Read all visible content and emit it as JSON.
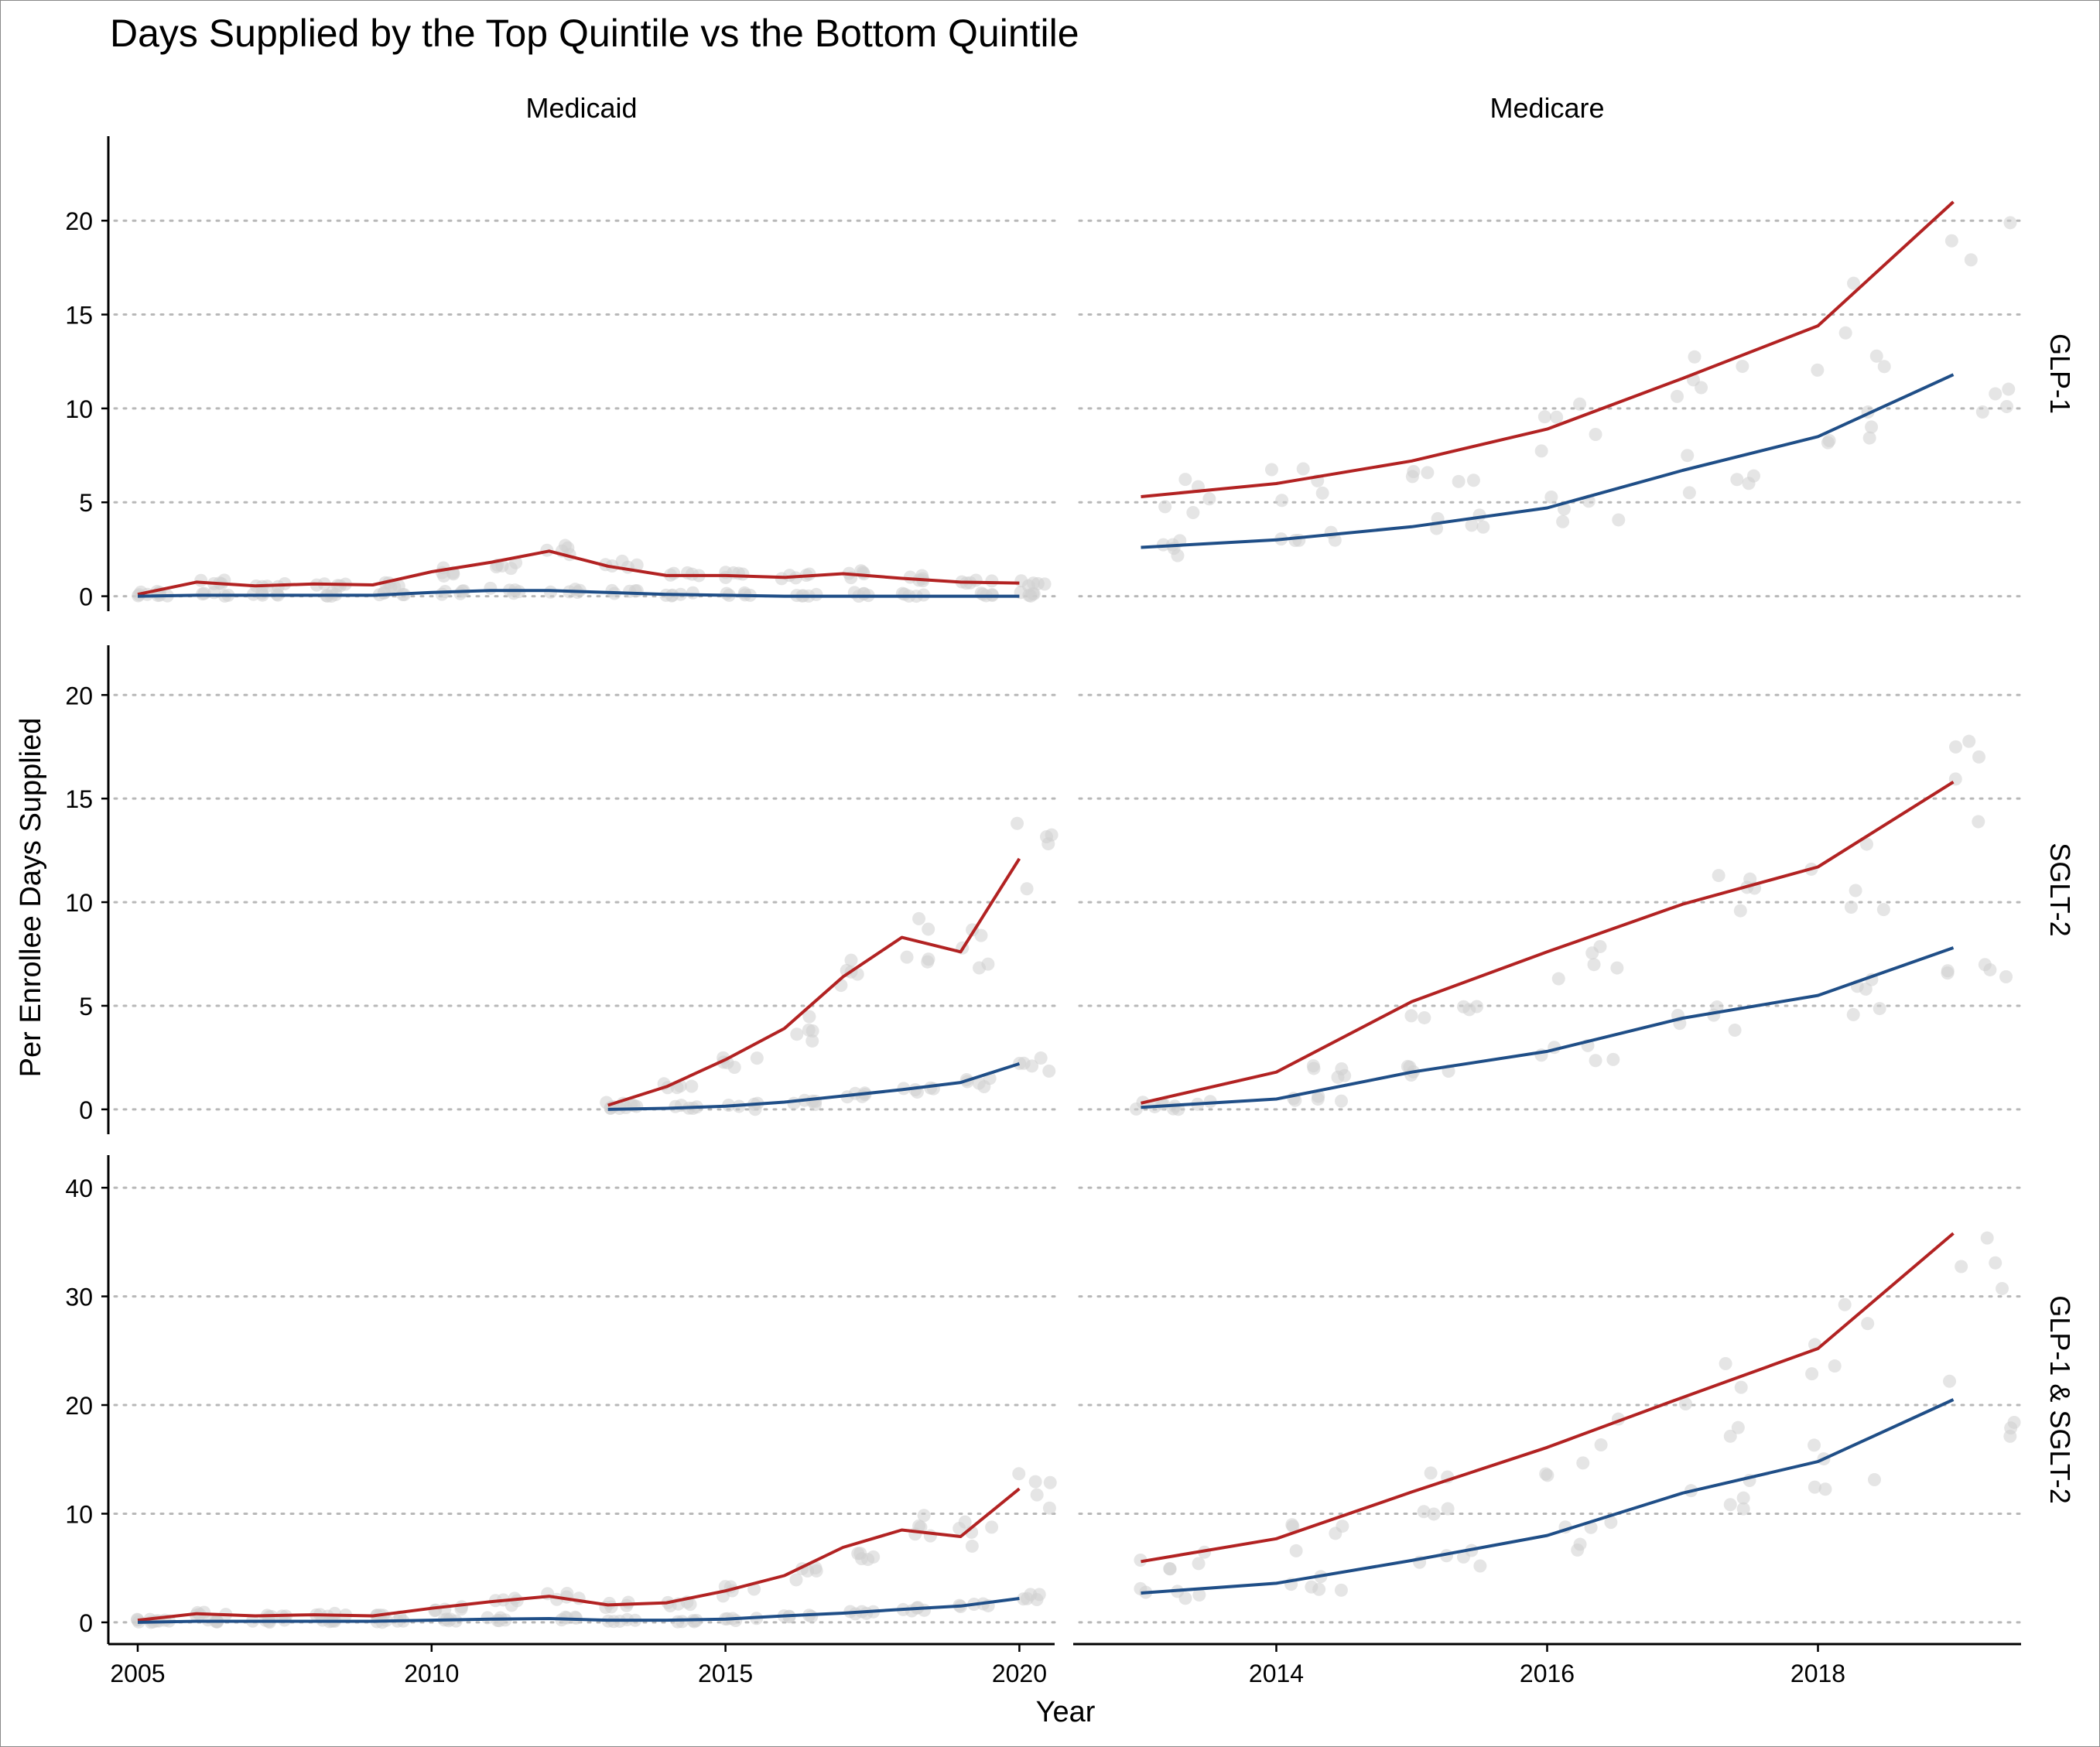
{
  "chart_data": {
    "type": "line",
    "title": "Days Supplied by the Top Quintile vs the Bottom Quintile",
    "xlabel": "Year",
    "ylabel": "Per Enrollee Days Supplied",
    "columns": [
      "Medicaid",
      "Medicare"
    ],
    "rows": [
      "GLP-1",
      "SGLT-2",
      "GLP-1 & SGLT-2"
    ],
    "x_ranges": {
      "Medicaid": [
        2004.5,
        2020.6
      ],
      "Medicare": [
        2012.5,
        2019.5
      ]
    },
    "x_ticks": {
      "Medicaid": [
        2005,
        2010,
        2015,
        2020
      ],
      "Medicare": [
        2014,
        2016,
        2018
      ]
    },
    "y_ranges": {
      "GLP-1": [
        -0.8,
        24.5
      ],
      "SGLT-2": [
        -1.2,
        22.4
      ],
      "GLP-1 & SGLT-2": [
        -2,
        43
      ]
    },
    "y_ticks": {
      "GLP-1": [
        0,
        5,
        10,
        15,
        20
      ],
      "SGLT-2": [
        0,
        5,
        10,
        15,
        20
      ],
      "GLP-1 & SGLT-2": [
        0,
        10,
        20,
        30,
        40
      ]
    },
    "grid": "horizontal-dotted",
    "colors": {
      "top": "#b22222",
      "bottom": "#1f4e87",
      "points": "#cfcfcf"
    },
    "panels": [
      {
        "column": "Medicaid",
        "row": "GLP-1",
        "x": [
          2005,
          2006,
          2007,
          2008,
          2009,
          2010,
          2011,
          2012,
          2013,
          2014,
          2015,
          2016,
          2017,
          2018,
          2019,
          2020
        ],
        "series": [
          {
            "quintile": "top",
            "values": [
              0.1,
              0.75,
              0.55,
              0.65,
              0.6,
              1.3,
              1.8,
              2.4,
              1.6,
              1.1,
              1.1,
              1.0,
              1.2,
              0.95,
              0.75,
              0.7
            ]
          },
          {
            "quintile": "bottom",
            "values": [
              0,
              0.05,
              0.05,
              0.05,
              0.05,
              0.2,
              0.3,
              0.3,
              0.2,
              0.1,
              0.05,
              0,
              0,
              0,
              0,
              0
            ]
          }
        ]
      },
      {
        "column": "Medicare",
        "row": "GLP-1",
        "x": [
          2013,
          2014,
          2015,
          2016,
          2017,
          2018,
          2019
        ],
        "series": [
          {
            "quintile": "top",
            "values": [
              5.3,
              6.0,
              7.2,
              8.9,
              11.6,
              14.4,
              21.0
            ]
          },
          {
            "quintile": "bottom",
            "values": [
              2.6,
              3.0,
              3.7,
              4.7,
              6.7,
              8.5,
              11.8
            ]
          }
        ]
      },
      {
        "column": "Medicaid",
        "row": "SGLT-2",
        "x": [
          2013,
          2014,
          2015,
          2016,
          2017,
          2018,
          2019,
          2020
        ],
        "series": [
          {
            "quintile": "top",
            "values": [
              0.2,
              1.1,
              2.4,
              3.9,
              6.4,
              8.3,
              7.6,
              12.1
            ]
          },
          {
            "quintile": "bottom",
            "values": [
              0,
              0.05,
              0.15,
              0.35,
              0.65,
              0.95,
              1.3,
              2.2
            ]
          }
        ]
      },
      {
        "column": "Medicare",
        "row": "SGLT-2",
        "x": [
          2013,
          2014,
          2015,
          2016,
          2017,
          2018,
          2019
        ],
        "series": [
          {
            "quintile": "top",
            "values": [
              0.3,
              1.8,
              5.2,
              7.6,
              9.9,
              11.7,
              15.8
            ]
          },
          {
            "quintile": "bottom",
            "values": [
              0.1,
              0.5,
              1.8,
              2.8,
              4.4,
              5.5,
              7.8
            ]
          }
        ]
      },
      {
        "column": "Medicaid",
        "row": "GLP-1 & SGLT-2",
        "x": [
          2005,
          2006,
          2007,
          2008,
          2009,
          2010,
          2011,
          2012,
          2013,
          2014,
          2015,
          2016,
          2017,
          2018,
          2019,
          2020
        ],
        "series": [
          {
            "quintile": "top",
            "values": [
              0.2,
              0.8,
              0.6,
              0.7,
              0.6,
              1.3,
              1.9,
              2.4,
              1.6,
              1.8,
              2.9,
              4.3,
              6.9,
              8.5,
              7.9,
              12.3
            ]
          },
          {
            "quintile": "bottom",
            "values": [
              0,
              0.1,
              0.1,
              0.1,
              0.1,
              0.2,
              0.3,
              0.35,
              0.2,
              0.2,
              0.3,
              0.6,
              0.85,
              1.2,
              1.5,
              2.2
            ]
          }
        ]
      },
      {
        "column": "Medicare",
        "row": "GLP-1 & SGLT-2",
        "x": [
          2013,
          2014,
          2015,
          2016,
          2017,
          2018,
          2019
        ],
        "series": [
          {
            "quintile": "top",
            "values": [
              5.6,
              7.7,
              12.0,
              16.1,
              20.7,
              25.2,
              35.8
            ]
          },
          {
            "quintile": "bottom",
            "values": [
              2.7,
              3.6,
              5.7,
              8.0,
              11.9,
              14.8,
              20.5
            ]
          }
        ]
      }
    ]
  }
}
